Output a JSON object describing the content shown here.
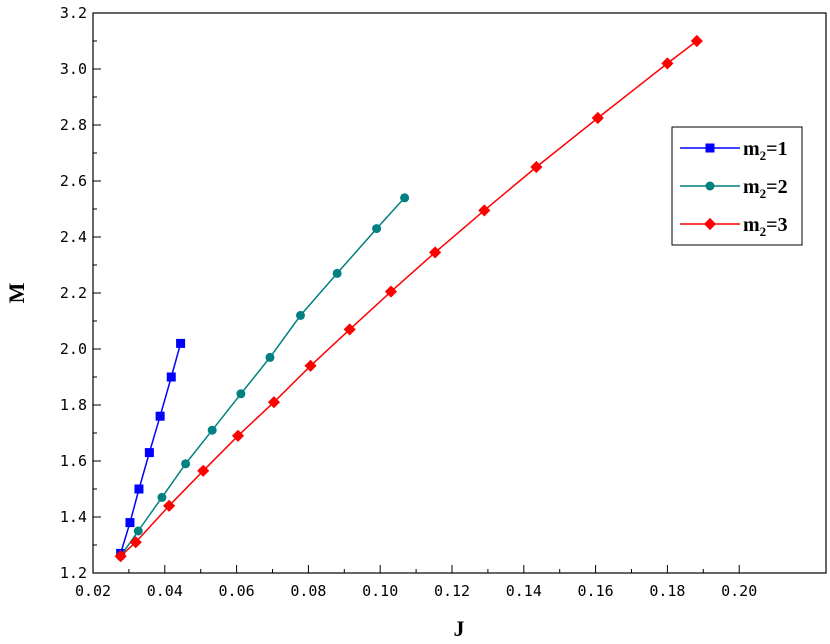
{
  "chart_data": {
    "type": "line",
    "xlabel": "J",
    "ylabel": "M",
    "xlim": [
      0.02,
      0.21
    ],
    "ylim": [
      1.2,
      3.2
    ],
    "xticks": [
      "0.02",
      "0.04",
      "0.06",
      "0.08",
      "0.10",
      "0.12",
      "0.14",
      "0.16",
      "0.18",
      "0.20"
    ],
    "yticks": [
      "1.2",
      "1.4",
      "1.6",
      "1.8",
      "2.0",
      "2.2",
      "2.4",
      "2.6",
      "2.8",
      "3.0",
      "3.2"
    ],
    "grid": false,
    "legend_position": "right",
    "series": [
      {
        "name": "m2=1",
        "name_base": "m",
        "name_sub": "2",
        "name_rest": "=1",
        "color": "#0000ff",
        "marker": "square",
        "x": [
          0.0277,
          0.0303,
          0.0328,
          0.0357,
          0.0387,
          0.0418,
          0.0444
        ],
        "y": [
          1.27,
          1.38,
          1.5,
          1.63,
          1.76,
          1.9,
          2.02
        ]
      },
      {
        "name": "m2=2",
        "name_base": "m",
        "name_sub": "2",
        "name_rest": "=2",
        "color": "#008080",
        "marker": "circle",
        "x": [
          0.0277,
          0.0326,
          0.0392,
          0.0458,
          0.0532,
          0.0612,
          0.0693,
          0.0778,
          0.088,
          0.099,
          0.1068
        ],
        "y": [
          1.26,
          1.35,
          1.47,
          1.59,
          1.71,
          1.84,
          1.97,
          2.12,
          2.27,
          2.43,
          2.54
        ]
      },
      {
        "name": "m2=3",
        "name_base": "m",
        "name_sub": "2",
        "name_rest": "=3",
        "color": "#ff0000",
        "marker": "diamond",
        "x": [
          0.0277,
          0.0319,
          0.0412,
          0.0507,
          0.0604,
          0.0704,
          0.0806,
          0.0915,
          0.103,
          0.1153,
          0.129,
          0.1435,
          0.1606,
          0.18,
          0.1882
        ],
        "y": [
          1.26,
          1.31,
          1.44,
          1.565,
          1.69,
          1.81,
          1.94,
          2.07,
          2.205,
          2.345,
          2.495,
          2.65,
          2.825,
          3.02,
          3.1
        ]
      }
    ]
  }
}
